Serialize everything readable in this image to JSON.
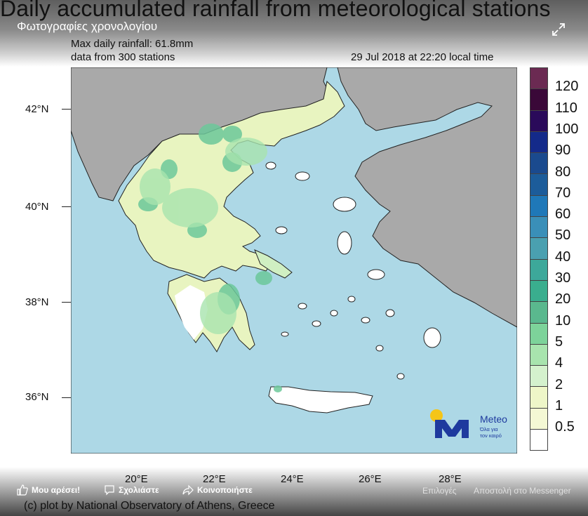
{
  "title": "Daily accumulated rainfall from meteorological stations",
  "album_title": "Φωτογραφίες χρονολογίου",
  "info": {
    "max_rain": "Max daily rainfall: 61.8mm",
    "stations": "data from 300 stations",
    "timestamp": "29 Jul 2018 at 22:20 local time"
  },
  "latitudes": [
    "42°N",
    "40°N",
    "38°N",
    "36°N"
  ],
  "longitudes": [
    "20°E",
    "22°E",
    "24°E",
    "26°E",
    "28°E"
  ],
  "colorbar": {
    "labels": [
      "120",
      "110",
      "100",
      "90",
      "80",
      "70",
      "60",
      "50",
      "40",
      "30",
      "20",
      "10",
      "5",
      "4",
      "2",
      "1",
      "0.5"
    ],
    "colors": [
      "#6b2a52",
      "#3a0838",
      "#2a0a5a",
      "#142a8a",
      "#1a4a8e",
      "#1c5c9a",
      "#1f78b8",
      "#3a8fb8",
      "#4aa0b0",
      "#3da89a",
      "#3aae8e",
      "#5ab88e",
      "#7dd39a",
      "#a8e4ae",
      "#d4f1cd",
      "#eef6c8",
      "#f4f8d4",
      "#ffffff"
    ]
  },
  "logo": {
    "name": "Meteo",
    "tagline_1": "Όλα για",
    "tagline_2": "τον καιρό"
  },
  "facebook": {
    "like": "Μου αρέσει!",
    "comment": "Σχολιάστε",
    "share": "Κοινοποιήστε",
    "options": "Επιλογές",
    "send": "Αποστολή στο Messenger"
  },
  "credit": "(c) plot by National Observatory of Athens, Greece",
  "colors": {
    "sea": "#add8e6",
    "land_other": "#a9a9a9"
  }
}
